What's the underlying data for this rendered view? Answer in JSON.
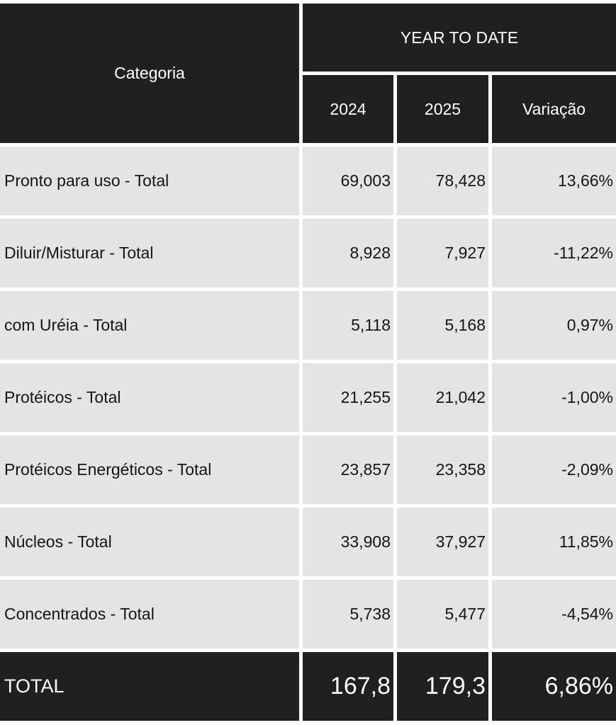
{
  "chart_data": {
    "type": "table",
    "header": {
      "category": "Categoria",
      "group": "YEAR TO DATE",
      "columns": [
        "2024",
        "2025",
        "Variação"
      ]
    },
    "rows": [
      {
        "category": "Pronto para uso - Total",
        "y2024": "69,003",
        "y2025": "78,428",
        "variation": "13,66%"
      },
      {
        "category": "Diluir/Misturar - Total",
        "y2024": "8,928",
        "y2025": "7,927",
        "variation": "-11,22%"
      },
      {
        "category": "com Uréia - Total",
        "y2024": "5,118",
        "y2025": "5,168",
        "variation": "0,97%"
      },
      {
        "category": "Protéicos - Total",
        "y2024": "21,255",
        "y2025": "21,042",
        "variation": "-1,00%"
      },
      {
        "category": "Protéicos Energéticos - Total",
        "y2024": "23,857",
        "y2025": "23,358",
        "variation": "-2,09%"
      },
      {
        "category": "Núcleos - Total",
        "y2024": "33,908",
        "y2025": "37,927",
        "variation": "11,85%"
      },
      {
        "category": "Concentrados - Total",
        "y2024": "5,738",
        "y2025": "5,477",
        "variation": "-4,54%"
      }
    ],
    "total": {
      "category": "TOTAL",
      "y2024": "167,8",
      "y2025": "179,3",
      "variation": "6,86%"
    }
  },
  "colors": {
    "header_bg": "#202020",
    "row_bg": "#e4e4e4",
    "header_text": "#ffffff"
  }
}
